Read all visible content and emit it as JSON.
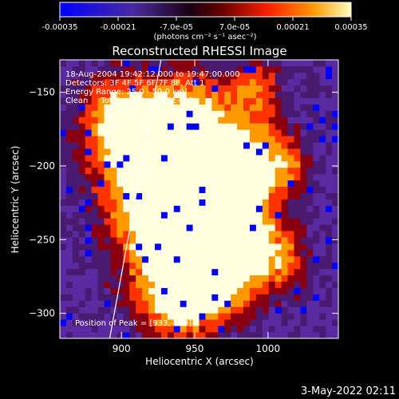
{
  "chart_data": {
    "type": "heatmap",
    "title": "Reconstructed RHESSI Image",
    "xlabel": "Heliocentric X (arcsec)",
    "ylabel": "Heliocentric Y (arcsec)",
    "xlim": [
      858,
      1048
    ],
    "ylim": [
      -317,
      -128
    ],
    "x_ticks": [
      900,
      950,
      1000
    ],
    "y_ticks": [
      -300,
      -250,
      -200,
      -150
    ],
    "colorbar": {
      "min": -0.00035,
      "max": 0.00035,
      "tick_labels": [
        "-0.00035",
        "-0.00021",
        "-7.0e-05",
        "7.0e-05",
        "0.00021",
        "0.00035"
      ],
      "tick_values": [
        -0.00035,
        -0.00021,
        -7e-05,
        7e-05,
        0.00021,
        0.00035
      ],
      "unit_label": "(photons cm⁻² s⁻¹ asec⁻²)"
    },
    "annotations": [
      "18-Aug-2004 19:42:12.000 to 19:47:00.000",
      "Detectors: 3F 4F 5F 6F 7F 8F, Att 1",
      "Energy Range: 25.0 - 50.0 keV",
      "Clean     Total counts: 4.86E+03"
    ],
    "peak_label": "Position of Peak = [933,-168]",
    "peak": [
      933,
      -168
    ],
    "limb_line": [
      [
        892,
        -317
      ],
      [
        927,
        -128
      ]
    ],
    "colors": [
      "#0000ff",
      "#5a2aa0",
      "#4a1a70",
      "#8a0010",
      "#ff3300",
      "#ff9900",
      "#ffffe0"
    ]
  },
  "footer": {
    "date": "3-May-2022 02:11"
  }
}
